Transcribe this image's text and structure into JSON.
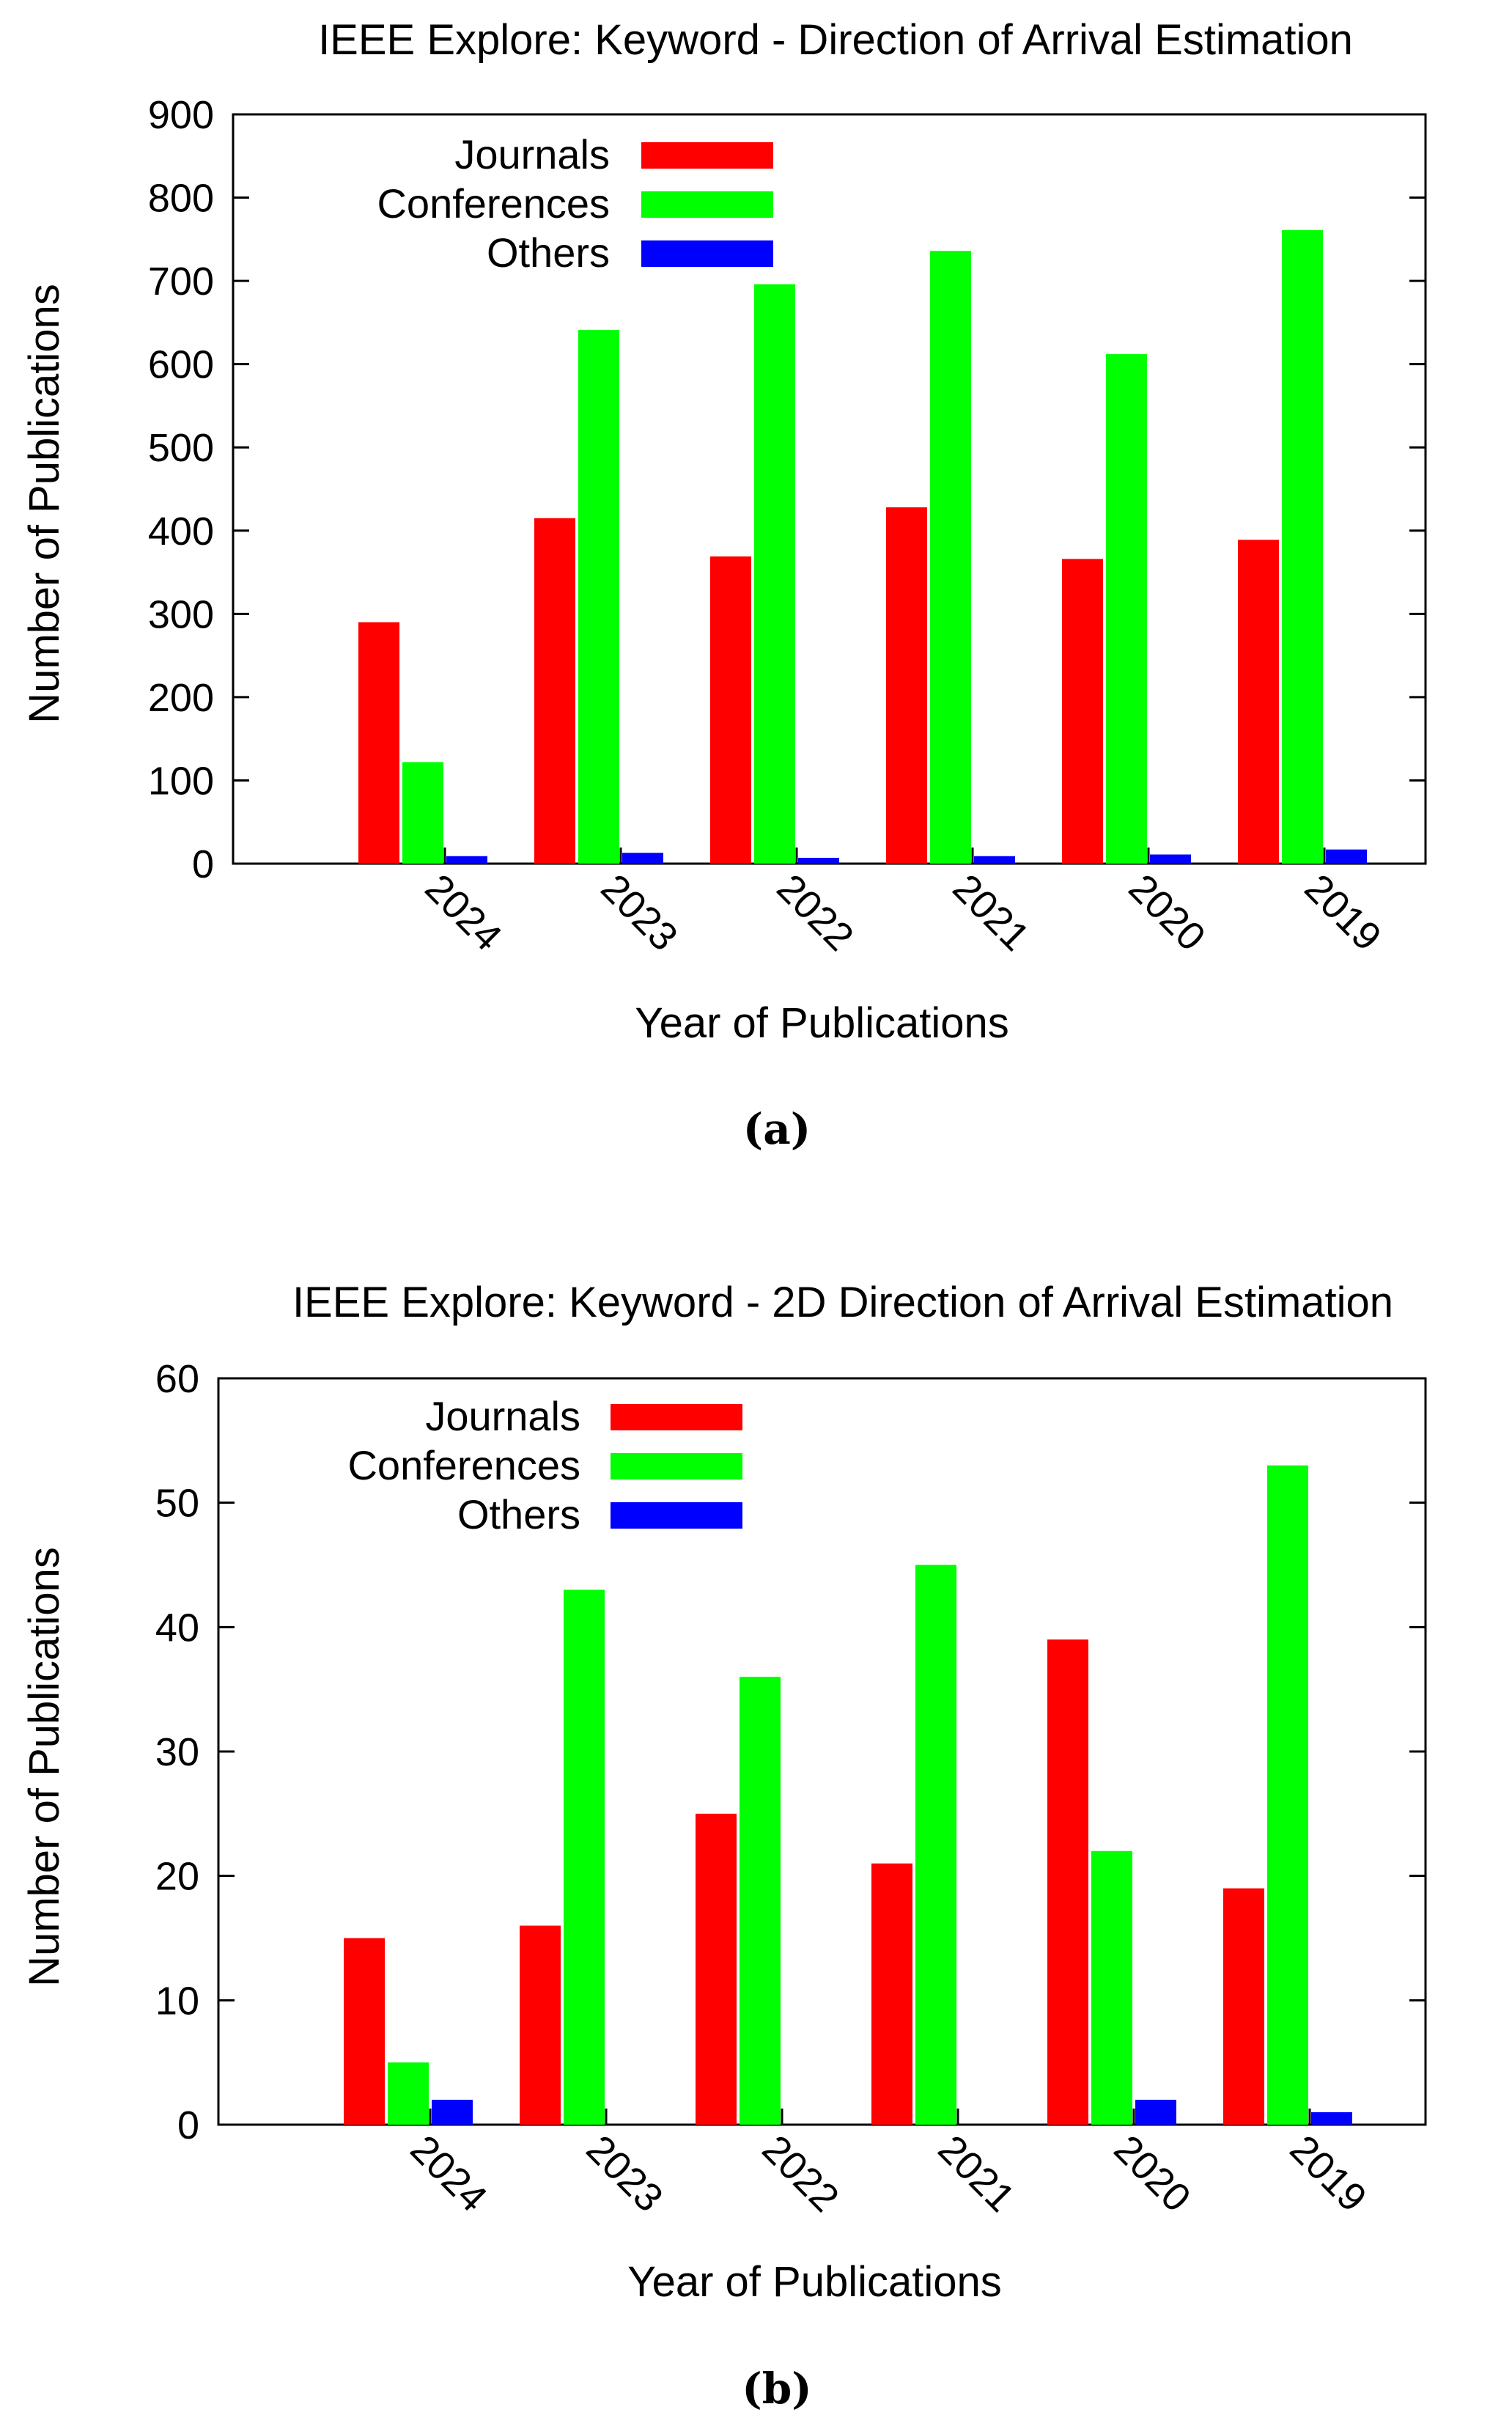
{
  "chart_data": [
    {
      "type": "bar",
      "title": "IEEE Explore: Keyword - Direction of Arrival Estimation",
      "xlabel": "Year of Publications",
      "ylabel": "Number of Publications",
      "categories": [
        "2024",
        "2023",
        "2022",
        "2021",
        "2020",
        "2019"
      ],
      "series": [
        {
          "name": "Journals",
          "color": "#ff0000",
          "values": [
            290,
            415,
            369,
            428,
            366,
            389
          ]
        },
        {
          "name": "Conferences",
          "color": "#00ff00",
          "values": [
            122,
            641,
            696,
            736,
            612,
            761
          ]
        },
        {
          "name": "Others",
          "color": "#0000ff",
          "values": [
            9,
            13,
            7,
            9,
            11,
            17
          ]
        }
      ],
      "ylim": [
        0,
        900
      ],
      "yticks": [
        0,
        100,
        200,
        300,
        400,
        500,
        600,
        700,
        800,
        900
      ],
      "legend": "top-left",
      "caption": "(a)"
    },
    {
      "type": "bar",
      "title": "IEEE Explore: Keyword - 2D Direction of Arrival Estimation",
      "xlabel": "Year of Publications",
      "ylabel": "Number of Publications",
      "categories": [
        "2024",
        "2023",
        "2022",
        "2021",
        "2020",
        "2019"
      ],
      "series": [
        {
          "name": "Journals",
          "color": "#ff0000",
          "values": [
            15,
            16,
            25,
            21,
            39,
            19
          ]
        },
        {
          "name": "Conferences",
          "color": "#00ff00",
          "values": [
            5,
            43,
            36,
            45,
            22,
            53
          ]
        },
        {
          "name": "Others",
          "color": "#0000ff",
          "values": [
            2,
            0,
            0,
            0,
            2,
            1
          ]
        }
      ],
      "ylim": [
        0,
        60
      ],
      "yticks": [
        0,
        10,
        20,
        30,
        40,
        50,
        60
      ],
      "legend": "top-left",
      "caption": "(b)"
    }
  ]
}
